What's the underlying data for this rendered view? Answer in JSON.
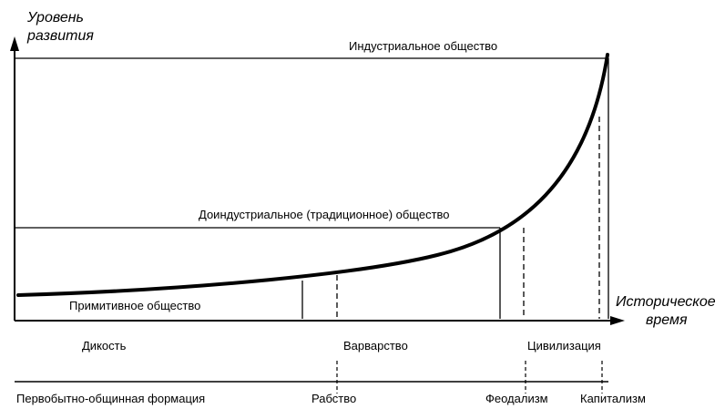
{
  "axes": {
    "y_title_line1": "Уровень",
    "y_title_line2": "развития",
    "x_title_line1": "Историческое",
    "x_title_line2": "время"
  },
  "societies": {
    "industrial": "Индустриальное общество",
    "preindustrial": "Доиндустриальное (традиционное) общество",
    "primitive": "Примитивное  общество"
  },
  "eras": {
    "savagery": "Дикость",
    "barbarism": "Варварство",
    "civilization": "Цивилизация"
  },
  "formations": {
    "primitive_communal": "Первобытно-общинная формация",
    "slavery": "Рабство",
    "feudalism": "Феодализм",
    "capitalism": "Капитализм"
  },
  "colors": {
    "ink": "#000000",
    "background": "#ffffff"
  }
}
